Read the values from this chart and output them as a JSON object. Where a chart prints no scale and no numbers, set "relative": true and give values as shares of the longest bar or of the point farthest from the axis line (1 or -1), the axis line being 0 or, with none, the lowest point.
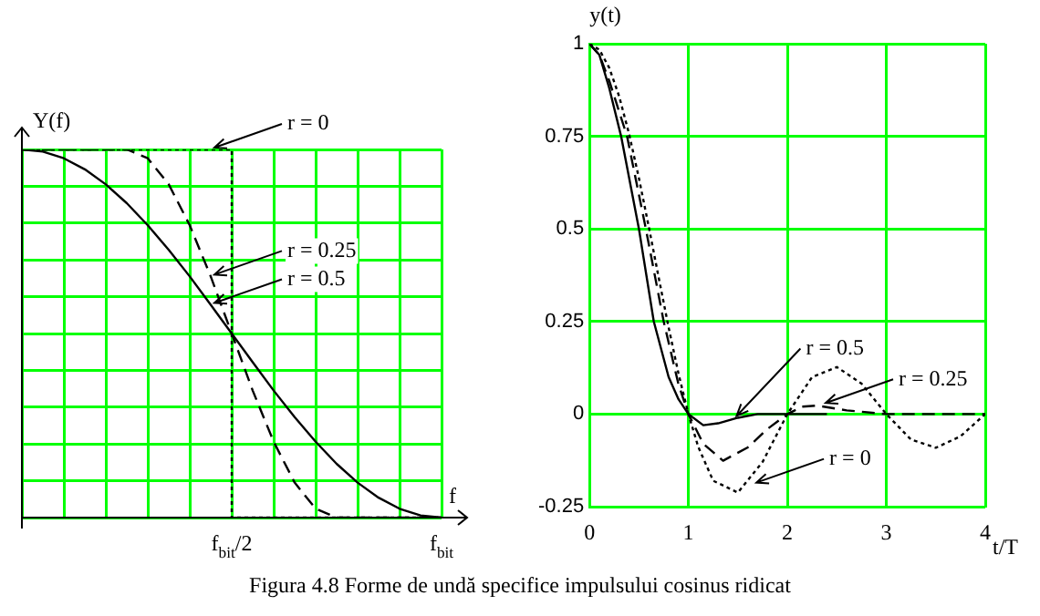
{
  "chart_data": [
    {
      "type": "line",
      "xlabel": "f",
      "ylabel": "Y(f)",
      "relative": true,
      "categories": [
        null,
        null,
        null,
        null,
        null,
        null,
        null,
        null,
        null,
        null,
        "f$_{bit}$/2",
        null,
        null,
        null,
        null,
        null,
        null,
        null,
        null,
        null,
        "f$_{bit}$"
      ],
      "tick_labels": "x",
      "grid": true,
      "legend": false,
      "marker": "none",
      "series": [
        {
          "type": "step",
          "color": "#000000",
          "line_style": "dotted",
          "values": [
            1,
            1,
            1,
            1,
            1,
            1,
            1,
            1,
            1,
            1,
            0,
            0,
            0,
            0,
            0,
            0,
            0,
            0,
            0,
            0,
            0
          ]
        },
        {
          "color": "#000000",
          "line_style": "dashed",
          "values": [
            1,
            1,
            1,
            1,
            1,
            1,
            0.976,
            0.905,
            0.794,
            0.655,
            0.5,
            0.345,
            0.206,
            0.095,
            0.024,
            0,
            0,
            0,
            0,
            0,
            0
          ]
        },
        {
          "color": "#000000",
          "line_style": "solid",
          "values": [
            1,
            0.994,
            0.976,
            0.946,
            0.905,
            0.854,
            0.794,
            0.727,
            0.655,
            0.578,
            0.5,
            0.422,
            0.345,
            0.273,
            0.206,
            0.146,
            0.095,
            0.054,
            0.024,
            0.006,
            0
          ]
        }
      ],
      "annotations": [
        "r = 0",
        "r = 0.25",
        "r = 0.5",
        "Figura 4.8 Forme de undă specifice impulsului cosinus ridicat"
      ]
    },
    {
      "type": "line",
      "xlabel": "t/T",
      "ylabel": "y(t)",
      "xlim": [
        0,
        4
      ],
      "xticks": [
        0,
        1,
        2,
        3,
        4
      ],
      "ylim": [
        -0.25,
        1
      ],
      "yticks": [
        -0.25,
        0,
        0.25,
        0.5,
        0.75,
        1
      ],
      "grid": true,
      "legend": false,
      "marker": "none",
      "series": [
        {
          "color": "#000000",
          "line_style": "solid",
          "x": [
            0,
            0.1,
            0.2,
            0.32,
            0.5,
            0.65,
            0.8,
            0.9,
            1,
            1.15,
            1.3,
            1.5,
            1.7,
            2,
            2.4
          ],
          "values": [
            1,
            0.97,
            0.88,
            0.75,
            0.5,
            0.25,
            0.1,
            0.04,
            0,
            -0.03,
            -0.025,
            -0.01,
            0,
            0,
            0
          ]
        },
        {
          "color": "#000000",
          "line_style": "dashed",
          "x": [
            0,
            0.1,
            0.2,
            0.38,
            0.57,
            0.75,
            0.9,
            1,
            1.15,
            1.35,
            1.6,
            1.8,
            2,
            2.15,
            2.3,
            2.6,
            3,
            4
          ],
          "values": [
            1,
            0.97,
            0.9,
            0.75,
            0.5,
            0.25,
            0.08,
            0,
            -0.08,
            -0.126,
            -0.09,
            -0.04,
            0,
            0.02,
            0.023,
            0.01,
            0,
            0
          ]
        },
        {
          "color": "#000000",
          "line_style": "dotted",
          "x": [
            0,
            0.1,
            0.2,
            0.3,
            0.4,
            0.5,
            0.6,
            0.7,
            0.8,
            0.9,
            1,
            1.1,
            1.25,
            1.5,
            1.75,
            2,
            2.25,
            2.5,
            2.75,
            3,
            3.25,
            3.5,
            3.75,
            4
          ],
          "values": [
            1,
            0.984,
            0.935,
            0.858,
            0.757,
            0.637,
            0.505,
            0.368,
            0.234,
            0.109,
            0,
            -0.089,
            -0.18,
            -0.212,
            -0.129,
            0,
            0.1,
            0.127,
            0.082,
            0,
            -0.069,
            -0.091,
            -0.06,
            0
          ]
        }
      ],
      "annotations": [
        {
          "text": "r = 0.5",
          "x": 1.45,
          "y": -0.01
        },
        {
          "text": "r = 0.25",
          "x": 2.35,
          "y": 0.025
        },
        {
          "text": "r = 0",
          "x": 1.65,
          "y": -0.19
        }
      ]
    }
  ]
}
